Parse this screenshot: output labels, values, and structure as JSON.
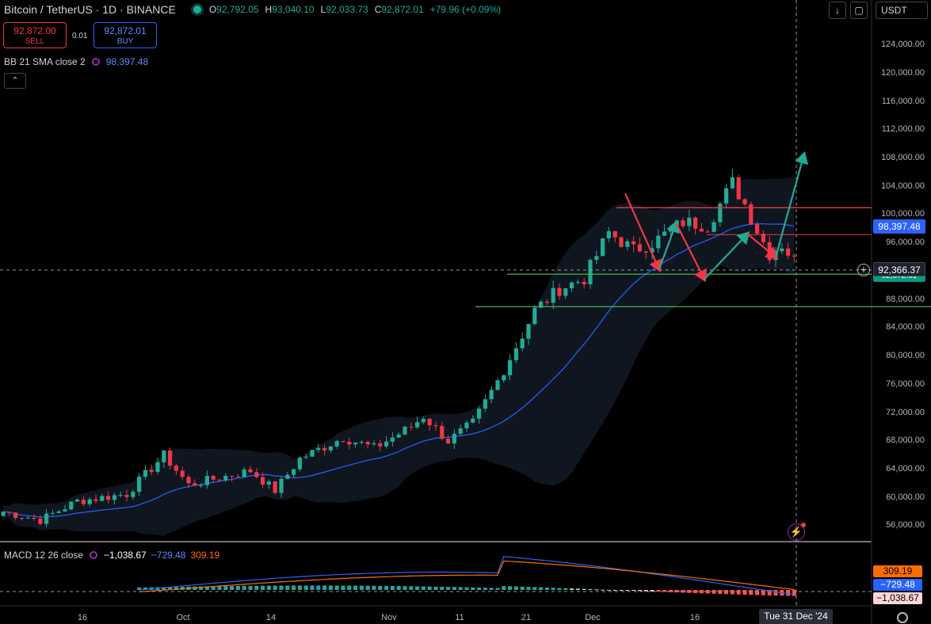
{
  "header": {
    "symbol": "Bitcoin / TetherUS · 1D · BINANCE",
    "o_key": "O",
    "o_val": "92,792.05",
    "h_key": "H",
    "h_val": "93,040.10",
    "l_key": "L",
    "l_val": "92,033.73",
    "c_key": "C",
    "c_val": "92,872.01",
    "change": "+79.96 (+0.09%)"
  },
  "trade": {
    "sell_price": "92,872.00",
    "sell_label": "SELL",
    "spread": "0.01",
    "buy_price": "92,872.01",
    "buy_label": "BUY"
  },
  "bb": {
    "label": "BB 21 SMA close 2",
    "value": "98,397.48"
  },
  "collapse_icon": "chevron-up-icon",
  "toolbar": {
    "download_icon": "arrow-down-icon",
    "fullscreen_icon": "fullscreen-icon",
    "currency": "USDT"
  },
  "y_ticks": [
    "124,000.00",
    "120,000.00",
    "116,000.00",
    "112,000.00",
    "108,000.00",
    "104,000.00",
    "100,000.00",
    "96,000.00",
    "88,000.00",
    "84,000.00",
    "80,000.00",
    "76,000.00",
    "72,000.00",
    "68,000.00",
    "64,000.00",
    "60,000.00",
    "56,000.00"
  ],
  "x_ticks": [
    "16",
    "Oct",
    "14",
    "Nov",
    "11",
    "21",
    "Dec",
    "16"
  ],
  "price_labels": {
    "bb_basis": "98,397.48",
    "crosshair": "92,366.37",
    "last": "92,872.01"
  },
  "macd": {
    "label": "MACD 12 26 close",
    "hist": "−1,038.67",
    "macd": "−729.48",
    "signal": "309.19"
  },
  "date_label": "Tue 31 Dec '24",
  "colors": {
    "up": "#22ab94",
    "down": "#f23645",
    "bb_basis": "#2962ff",
    "macd": "#2962ff",
    "signal": "#ff6d00",
    "support": "#4caf50",
    "resistance": "#f23645"
  },
  "chart_data": {
    "type": "candlestick",
    "ylim": [
      54000,
      126000
    ],
    "series": [
      {
        "name": "BB 21 SMA close 2",
        "x": [
          0,
          15,
          30,
          45,
          60,
          75,
          90,
          100,
          110,
          120,
          128
        ],
        "y": [
          60500,
          59500,
          63500,
          62800,
          67200,
          76000,
          89500,
          96500,
          98800,
          99200,
          98400
        ]
      }
    ],
    "horizontal_levels": [
      {
        "y": 101000,
        "color": "#f23645"
      },
      {
        "y": 97200,
        "color": "#f23645"
      },
      {
        "y": 91600,
        "color": "#4caf50"
      },
      {
        "y": 87000,
        "color": "#4caf50"
      }
    ],
    "projection_arrows": [
      {
        "color": "#f23645",
        "points": [
          [
            110,
            103000
          ],
          [
            116,
            92300
          ]
        ]
      },
      {
        "color": "#22ab94",
        "points": [
          [
            116,
            92300
          ],
          [
            119,
            98800
          ]
        ]
      },
      {
        "color": "#f23645",
        "points": [
          [
            119,
            98800
          ],
          [
            124,
            90900
          ]
        ]
      },
      {
        "color": "#22ab94",
        "points": [
          [
            124,
            90900
          ],
          [
            126,
            97300
          ]
        ]
      },
      {
        "color": "#f23645",
        "points": [
          [
            126,
            97300
          ],
          [
            131,
            94000
          ]
        ]
      },
      {
        "color": "#22ab94",
        "points": [
          [
            131,
            94000
          ],
          [
            136,
            108500
          ]
        ]
      }
    ],
    "macd": {
      "values_last": {
        "macd": -729.48,
        "signal": 309.19,
        "hist": -1038.67
      }
    }
  }
}
